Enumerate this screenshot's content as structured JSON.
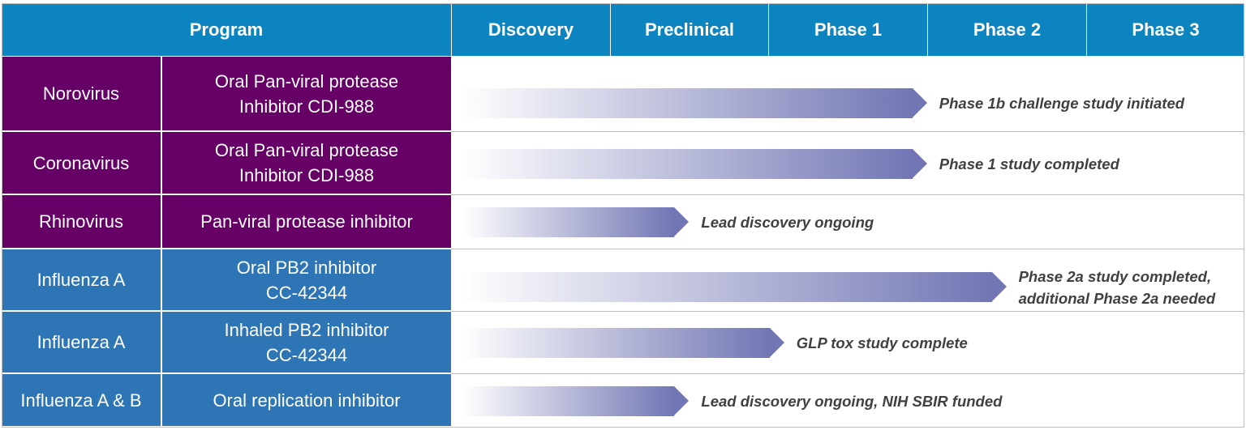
{
  "header": {
    "program": "Program",
    "stages": [
      "Discovery",
      "Preclinical",
      "Phase 1",
      "Phase 2",
      "Phase 3"
    ]
  },
  "colors": {
    "header": "#0b84bf",
    "antiviral_rows": "#660066",
    "influenza_rows": "#2e75b6",
    "arrow_start": "#ffffff",
    "arrow_end": "#7276b4",
    "status_text": "#404040"
  },
  "chart_data": {
    "type": "table",
    "columns": [
      "Program",
      "",
      "Discovery",
      "Preclinical",
      "Phase 1",
      "Phase 2",
      "Phase 3"
    ],
    "rows": [
      {
        "target": "Norovirus",
        "compound": "Oral Pan-viral protease\nInhibitor CDI-988",
        "progress_stages": 3.0,
        "status": "Phase 1b challenge study initiated",
        "group": "antiviral"
      },
      {
        "target": "Coronavirus",
        "compound": "Oral Pan-viral protease\nInhibitor CDI-988",
        "progress_stages": 3.0,
        "status": "Phase 1 study completed",
        "group": "antiviral"
      },
      {
        "target": "Rhinovirus",
        "compound": "Pan-viral protease inhibitor",
        "progress_stages": 1.5,
        "status": "Lead discovery ongoing",
        "group": "antiviral"
      },
      {
        "target": "Influenza A",
        "compound": "Oral PB2 inhibitor\nCC-42344",
        "progress_stages": 3.5,
        "status": "Phase 2a study completed,\nadditional Phase 2a needed",
        "group": "influenza"
      },
      {
        "target": "Influenza A",
        "compound": "Inhaled PB2 inhibitor\nCC-42344",
        "progress_stages": 2.1,
        "status": "GLP tox study complete",
        "group": "influenza"
      },
      {
        "target": "Influenza A & B",
        "compound": "Oral replication inhibitor",
        "progress_stages": 1.5,
        "status": "Lead discovery ongoing, NIH SBIR funded",
        "group": "influenza"
      }
    ]
  }
}
